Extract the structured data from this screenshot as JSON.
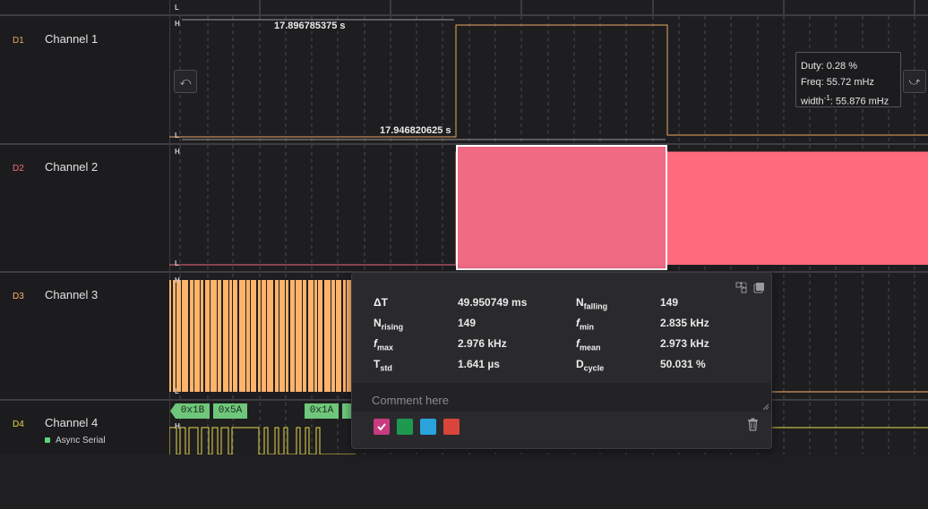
{
  "channels": [
    {
      "tag": "D1",
      "name": "Channel 1",
      "color": "#e8a865"
    },
    {
      "tag": "D2",
      "name": "Channel 2",
      "color": "#f26a7e"
    },
    {
      "tag": "D3",
      "name": "Channel 3",
      "color": "#ffb36b"
    },
    {
      "tag": "D4",
      "name": "Channel 4",
      "color": "#e9d94a"
    }
  ],
  "analyzer": {
    "name": "Async Serial",
    "color": "#5fd47a"
  },
  "level_labels": {
    "high": "H",
    "low": "L"
  },
  "measurements": {
    "top": "17.896785375 s",
    "bottom": "17.946820625 s"
  },
  "tooltip": {
    "duty": "Duty: 0.28 %",
    "freq": "Freq: 55.72 mHz",
    "width_prefix": "width",
    "width_sup": "-1",
    "width_suffix": ": 55.876 mHz"
  },
  "decoded_values": [
    "0x1B",
    "0x5A",
    "0x1A"
  ],
  "stats": {
    "dt": {
      "label": "ΔT",
      "value": "49.950749 ms"
    },
    "n_falling": {
      "label": "N",
      "sub": "falling",
      "value": "149"
    },
    "n_rising": {
      "label": "N",
      "sub": "rising",
      "value": "149"
    },
    "f_min": {
      "label": "f",
      "sub": "min",
      "value": "2.835 kHz"
    },
    "f_max": {
      "label": "f",
      "sub": "max",
      "value": "2.976 kHz"
    },
    "f_mean": {
      "label": "f",
      "sub": "mean",
      "value": "2.973 kHz"
    },
    "t_std": {
      "label": "T",
      "sub": "std",
      "value": "1.641 µs"
    },
    "d_cycle": {
      "label": "D",
      "sub": "cycle",
      "value": "50.031 %"
    }
  },
  "comment": {
    "placeholder": "Comment here"
  },
  "colors": {
    "selected": "#c93b7f",
    "green": "#1d9a4f",
    "blue": "#2ba3dd",
    "red": "#d9453a",
    "selection_fill": "#f06a84"
  },
  "icons": {
    "ch1_left": "falling-edge-nav-icon",
    "ch1_right": "rising-edge-nav-icon",
    "popup_left": "pin-icon",
    "popup_right": "copy-icon",
    "trash": "trash-icon",
    "check": "check-icon"
  }
}
